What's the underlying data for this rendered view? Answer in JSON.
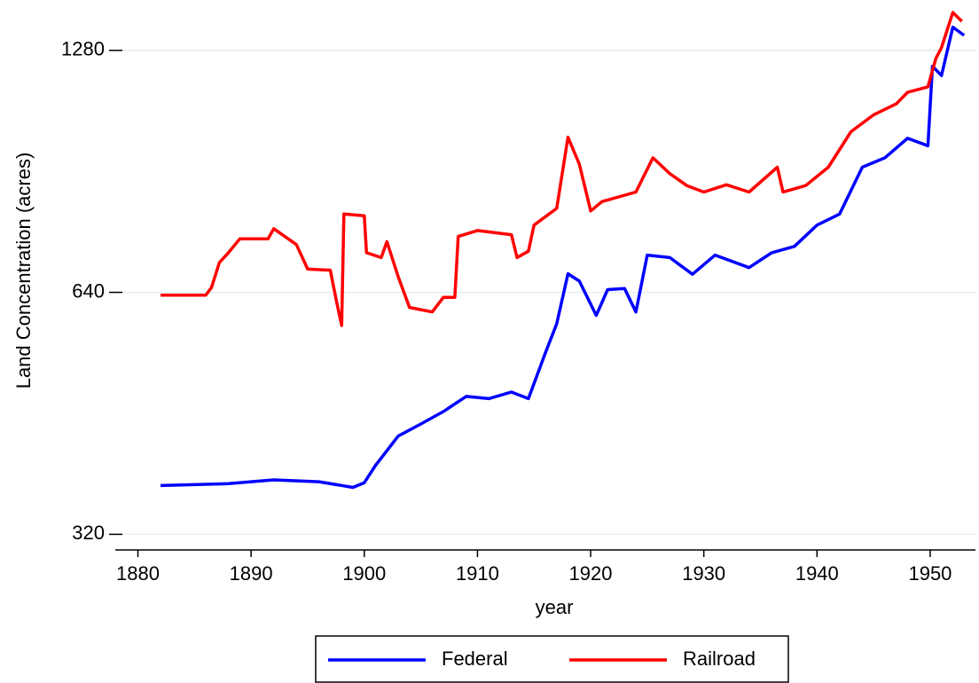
{
  "chart_data": {
    "type": "line",
    "y_label": "Land Concentration (acres)",
    "x_label": "year",
    "xlim": [
      1878,
      1954
    ],
    "xticks": [
      1880,
      1890,
      1900,
      1910,
      1920,
      1930,
      1940,
      1950
    ],
    "ylim": [
      306,
      1460
    ],
    "yticks": [
      320,
      640,
      1280
    ],
    "log_scale_y": true,
    "grid": true,
    "legend": "bottom",
    "series": [
      {
        "name": "Federal",
        "color": "#0000ff",
        "x": [
          1882,
          1888,
          1892,
          1896,
          1899,
          1900,
          1901,
          1903,
          1905,
          1907,
          1909,
          1911,
          1913,
          1914.5,
          1916,
          1917,
          1918,
          1919,
          1920.5,
          1921.5,
          1923,
          1924,
          1925,
          1927,
          1929,
          1931,
          1934,
          1936,
          1938,
          1940,
          1942,
          1944,
          1946,
          1948,
          1949.8,
          1950.2,
          1951,
          1952,
          1953
        ],
        "values": [
          368,
          370,
          374,
          372,
          366,
          371,
          390,
          424,
          439,
          455,
          475,
          472,
          481,
          472,
          538,
          585,
          675,
          661,
          599,
          645,
          647,
          605,
          712,
          707,
          674,
          712,
          687,
          717,
          730,
          776,
          801,
          916,
          941,
          995,
          974,
          1223,
          1191,
          1368,
          1336
        ]
      },
      {
        "name": "Railroad",
        "color": "#ff0000",
        "x": [
          1882,
          1886,
          1886.5,
          1887.2,
          1888,
          1889,
          1891.5,
          1892,
          1894,
          1895,
          1897,
          1897.5,
          1898,
          1898.2,
          1900,
          1900.2,
          1901.5,
          1902,
          1903,
          1904,
          1906,
          1907,
          1908,
          1908.3,
          1910,
          1913,
          1913.5,
          1914.5,
          1915,
          1917,
          1918,
          1919,
          1920,
          1921,
          1924,
          1925.5,
          1927,
          1928.5,
          1930,
          1932,
          1934,
          1936.5,
          1937,
          1939,
          1941,
          1943,
          1945,
          1947,
          1948,
          1949.8,
          1950.5,
          1951,
          1952,
          1952.8
        ],
        "values": [
          635,
          635,
          649,
          697,
          717,
          746,
          746,
          768,
          734,
          684,
          682,
          628,
          582,
          801,
          797,
          717,
          707,
          740,
          669,
          613,
          605,
          631,
          631,
          751,
          764,
          755,
          707,
          720,
          776,
          814,
          998,
          924,
          808,
          830,
          853,
          941,
          899,
          869,
          853,
          871,
          853,
          916,
          853,
          869,
          916,
          1014,
          1064,
          1098,
          1135,
          1153,
          1250,
          1290,
          1427,
          1391
        ]
      }
    ]
  }
}
